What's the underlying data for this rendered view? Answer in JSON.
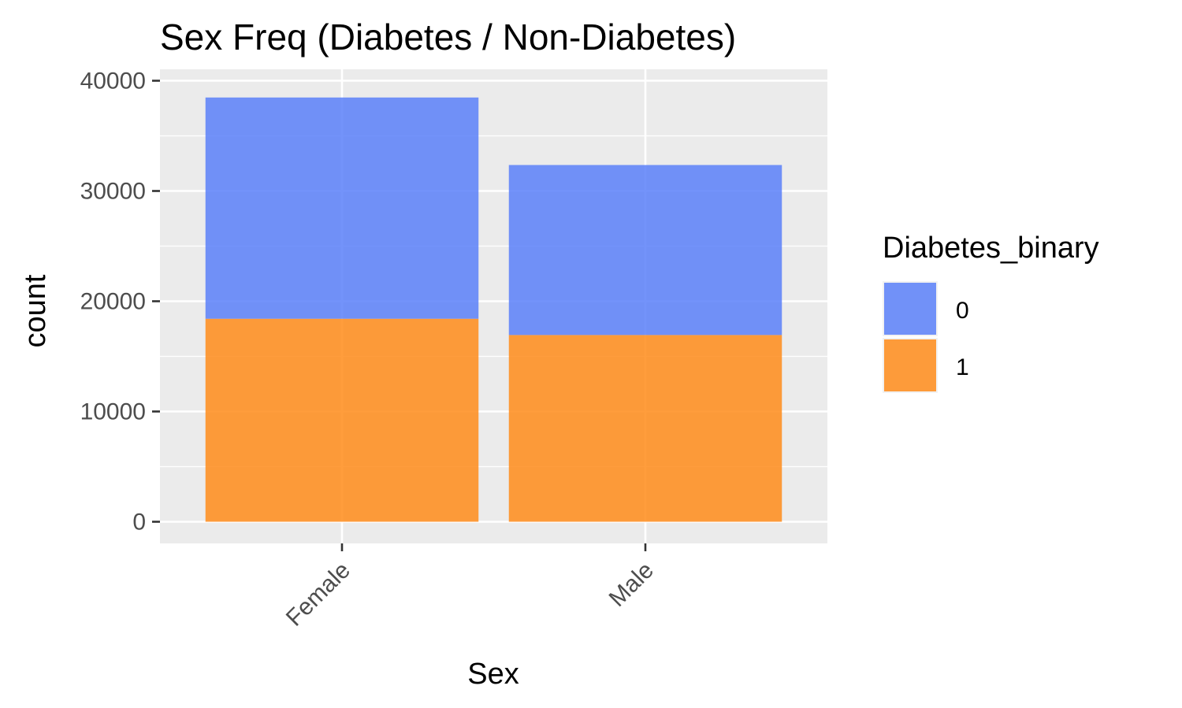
{
  "chart_data": {
    "type": "bar",
    "stacked": true,
    "title": "Sex Freq (Diabetes / Non-Diabetes)",
    "xlabel": "Sex",
    "ylabel": "count",
    "categories": [
      "Female",
      "Male"
    ],
    "series": [
      {
        "name": "1",
        "color": "#FF8C1A",
        "values": [
          18411,
          16936
        ]
      },
      {
        "name": "0",
        "color": "#5B80F9",
        "values": [
          20068,
          15419
        ]
      }
    ],
    "ylim": [
      0,
      40000
    ],
    "yticks": [
      0,
      10000,
      20000,
      30000,
      40000
    ],
    "ytick_labels": [
      "0",
      "10000",
      "20000",
      "30000",
      "40000"
    ],
    "legend": {
      "title": "Diabetes_binary",
      "position": "right",
      "items": [
        {
          "label": "0",
          "color": "#5B80F9"
        },
        {
          "label": "1",
          "color": "#FF8C1A"
        }
      ]
    },
    "grid": true,
    "background": "#EBEBEB"
  }
}
